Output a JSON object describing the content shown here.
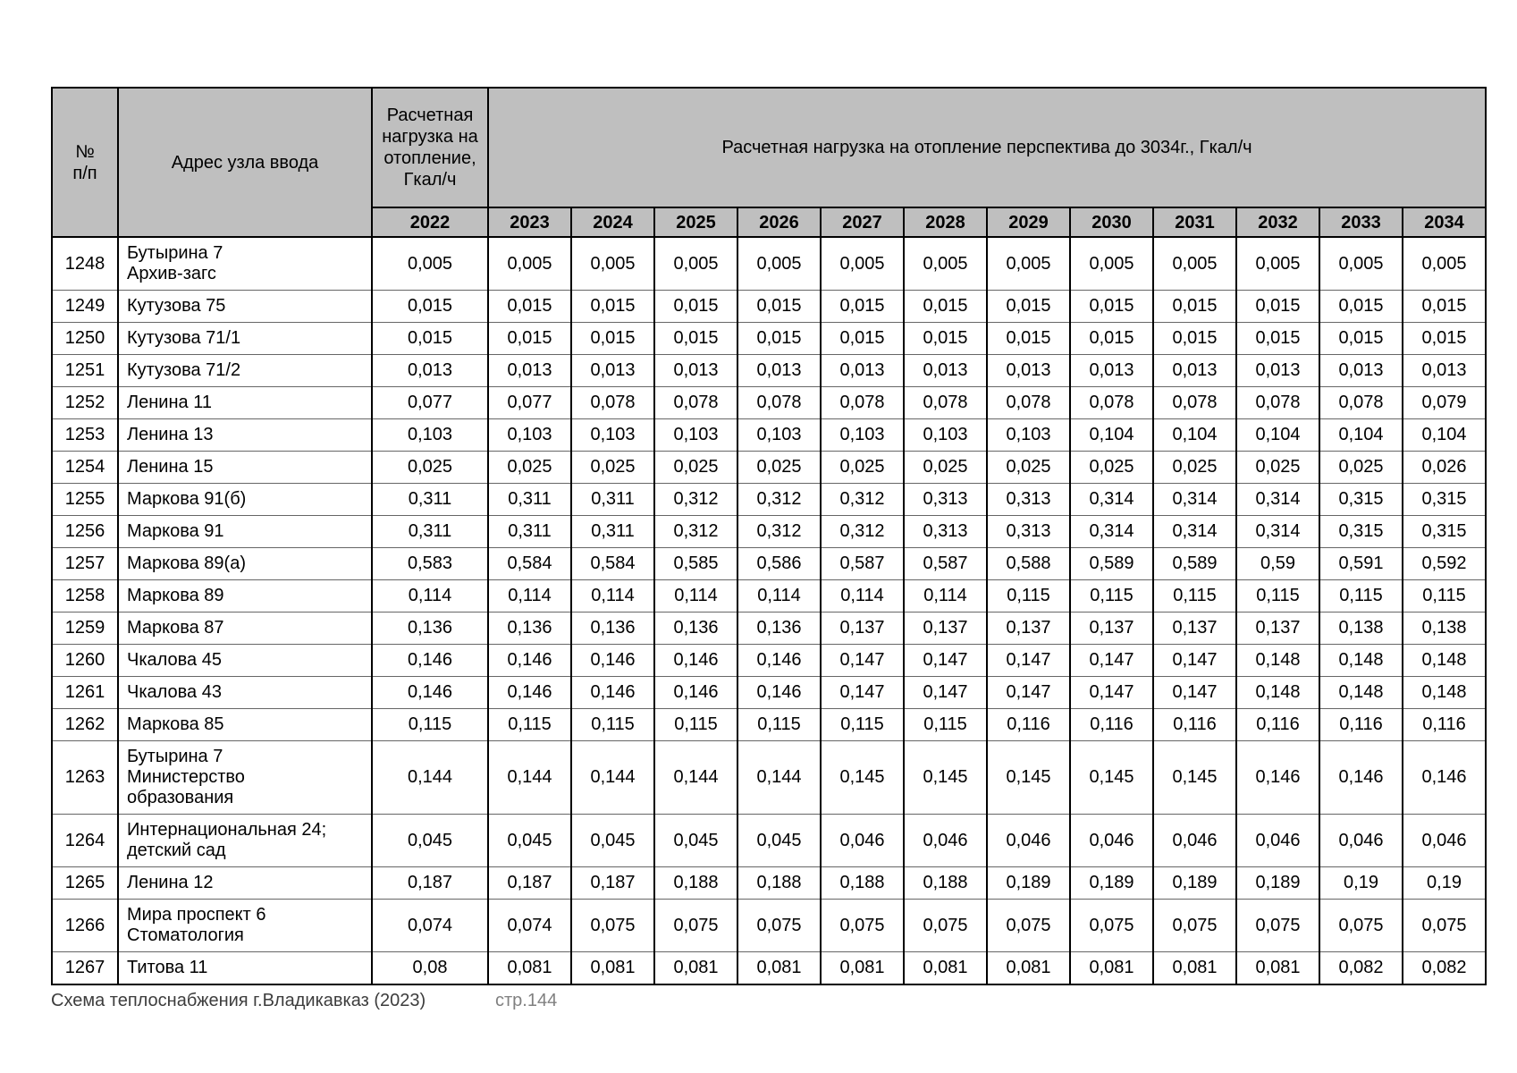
{
  "table": {
    "headers": {
      "row_number": "№\nп/п",
      "address": "Адрес узла ввода",
      "base_load": "Расчетная нагрузка на отопление, Гкал/ч",
      "perspective": "Расчетная нагрузка на отопление перспектива до 3034г., Гкал/ч"
    },
    "years": [
      "2022",
      "2023",
      "2024",
      "2025",
      "2026",
      "2027",
      "2028",
      "2029",
      "2030",
      "2031",
      "2032",
      "2033",
      "2034"
    ],
    "rows": [
      {
        "num": "1248",
        "address": [
          "Бутырина 7",
          "Архив-загс"
        ],
        "values": [
          "0,005",
          "0,005",
          "0,005",
          "0,005",
          "0,005",
          "0,005",
          "0,005",
          "0,005",
          "0,005",
          "0,005",
          "0,005",
          "0,005",
          "0,005"
        ]
      },
      {
        "num": "1249",
        "address": [
          "Кутузова 75"
        ],
        "values": [
          "0,015",
          "0,015",
          "0,015",
          "0,015",
          "0,015",
          "0,015",
          "0,015",
          "0,015",
          "0,015",
          "0,015",
          "0,015",
          "0,015",
          "0,015"
        ]
      },
      {
        "num": "1250",
        "address": [
          "Кутузова 71/1"
        ],
        "values": [
          "0,015",
          "0,015",
          "0,015",
          "0,015",
          "0,015",
          "0,015",
          "0,015",
          "0,015",
          "0,015",
          "0,015",
          "0,015",
          "0,015",
          "0,015"
        ]
      },
      {
        "num": "1251",
        "address": [
          "Кутузова 71/2"
        ],
        "values": [
          "0,013",
          "0,013",
          "0,013",
          "0,013",
          "0,013",
          "0,013",
          "0,013",
          "0,013",
          "0,013",
          "0,013",
          "0,013",
          "0,013",
          "0,013"
        ]
      },
      {
        "num": "1252",
        "address": [
          "Ленина 11"
        ],
        "values": [
          "0,077",
          "0,077",
          "0,078",
          "0,078",
          "0,078",
          "0,078",
          "0,078",
          "0,078",
          "0,078",
          "0,078",
          "0,078",
          "0,078",
          "0,079"
        ]
      },
      {
        "num": "1253",
        "address": [
          "Ленина 13"
        ],
        "values": [
          "0,103",
          "0,103",
          "0,103",
          "0,103",
          "0,103",
          "0,103",
          "0,103",
          "0,103",
          "0,104",
          "0,104",
          "0,104",
          "0,104",
          "0,104"
        ]
      },
      {
        "num": "1254",
        "address": [
          "Ленина 15"
        ],
        "values": [
          "0,025",
          "0,025",
          "0,025",
          "0,025",
          "0,025",
          "0,025",
          "0,025",
          "0,025",
          "0,025",
          "0,025",
          "0,025",
          "0,025",
          "0,026"
        ]
      },
      {
        "num": "1255",
        "address": [
          "Маркова 91(б)"
        ],
        "values": [
          "0,311",
          "0,311",
          "0,311",
          "0,312",
          "0,312",
          "0,312",
          "0,313",
          "0,313",
          "0,314",
          "0,314",
          "0,314",
          "0,315",
          "0,315"
        ]
      },
      {
        "num": "1256",
        "address": [
          "Маркова 91"
        ],
        "values": [
          "0,311",
          "0,311",
          "0,311",
          "0,312",
          "0,312",
          "0,312",
          "0,313",
          "0,313",
          "0,314",
          "0,314",
          "0,314",
          "0,315",
          "0,315"
        ]
      },
      {
        "num": "1257",
        "address": [
          "Маркова 89(а)"
        ],
        "values": [
          "0,583",
          "0,584",
          "0,584",
          "0,585",
          "0,586",
          "0,587",
          "0,587",
          "0,588",
          "0,589",
          "0,589",
          "0,59",
          "0,591",
          "0,592"
        ]
      },
      {
        "num": "1258",
        "address": [
          "Маркова 89"
        ],
        "values": [
          "0,114",
          "0,114",
          "0,114",
          "0,114",
          "0,114",
          "0,114",
          "0,114",
          "0,115",
          "0,115",
          "0,115",
          "0,115",
          "0,115",
          "0,115"
        ]
      },
      {
        "num": "1259",
        "address": [
          "Маркова 87"
        ],
        "values": [
          "0,136",
          "0,136",
          "0,136",
          "0,136",
          "0,136",
          "0,137",
          "0,137",
          "0,137",
          "0,137",
          "0,137",
          "0,137",
          "0,138",
          "0,138"
        ]
      },
      {
        "num": "1260",
        "address": [
          "Чкалова 45"
        ],
        "values": [
          "0,146",
          "0,146",
          "0,146",
          "0,146",
          "0,146",
          "0,147",
          "0,147",
          "0,147",
          "0,147",
          "0,147",
          "0,148",
          "0,148",
          "0,148"
        ]
      },
      {
        "num": "1261",
        "address": [
          "Чкалова 43"
        ],
        "values": [
          "0,146",
          "0,146",
          "0,146",
          "0,146",
          "0,146",
          "0,147",
          "0,147",
          "0,147",
          "0,147",
          "0,147",
          "0,148",
          "0,148",
          "0,148"
        ]
      },
      {
        "num": "1262",
        "address": [
          "Маркова 85"
        ],
        "values": [
          "0,115",
          "0,115",
          "0,115",
          "0,115",
          "0,115",
          "0,115",
          "0,115",
          "0,116",
          "0,116",
          "0,116",
          "0,116",
          "0,116",
          "0,116"
        ]
      },
      {
        "num": "1263",
        "address": [
          "Бутырина 7",
          "Министерство",
          "образования"
        ],
        "values": [
          "0,144",
          "0,144",
          "0,144",
          "0,144",
          "0,144",
          "0,145",
          "0,145",
          "0,145",
          "0,145",
          "0,145",
          "0,146",
          "0,146",
          "0,146"
        ]
      },
      {
        "num": "1264",
        "address": [
          "Интернациональная 24;",
          "детский сад"
        ],
        "values": [
          "0,045",
          "0,045",
          "0,045",
          "0,045",
          "0,045",
          "0,046",
          "0,046",
          "0,046",
          "0,046",
          "0,046",
          "0,046",
          "0,046",
          "0,046"
        ]
      },
      {
        "num": "1265",
        "address": [
          "Ленина 12"
        ],
        "values": [
          "0,187",
          "0,187",
          "0,187",
          "0,188",
          "0,188",
          "0,188",
          "0,188",
          "0,189",
          "0,189",
          "0,189",
          "0,189",
          "0,19",
          "0,19"
        ]
      },
      {
        "num": "1266",
        "address": [
          "Мира проспект 6",
          "Стоматология"
        ],
        "values": [
          "0,074",
          "0,074",
          "0,075",
          "0,075",
          "0,075",
          "0,075",
          "0,075",
          "0,075",
          "0,075",
          "0,075",
          "0,075",
          "0,075",
          "0,075"
        ]
      },
      {
        "num": "1267",
        "address": [
          "Титова 11"
        ],
        "values": [
          "0,08",
          "0,081",
          "0,081",
          "0,081",
          "0,081",
          "0,081",
          "0,081",
          "0,081",
          "0,081",
          "0,081",
          "0,081",
          "0,082",
          "0,082"
        ]
      }
    ]
  },
  "footer": {
    "left": "Схема теплоснабжения г.Владикавказ (2023)",
    "page": "стр.144"
  },
  "colors": {
    "header_bg": "#bfbfbf",
    "table_border": "#000000",
    "row_divider": "#666666",
    "footer_text": "#3d3d3d",
    "page_number_text": "#808080"
  }
}
